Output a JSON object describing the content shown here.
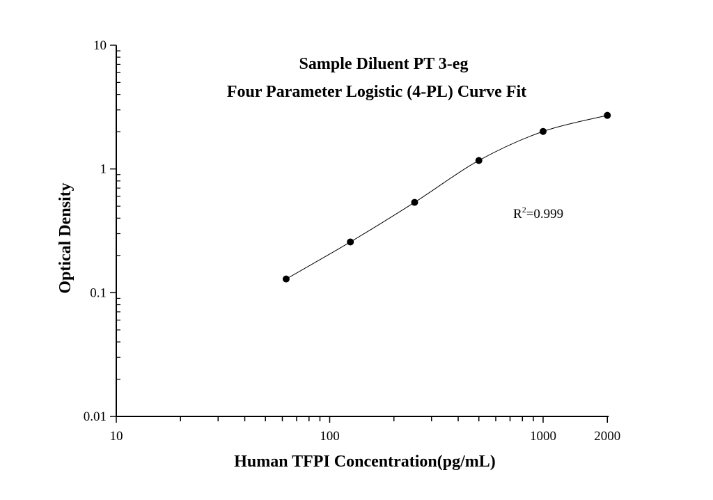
{
  "chart_data": {
    "type": "scatter",
    "title": "Sample Diluent PT 3-eg",
    "subtitle": "Four Parameter Logistic (4-PL) Curve Fit",
    "xlabel": "Human TFPI Concentration(pg/mL)",
    "ylabel": "Optical Density",
    "x_scale": "log",
    "y_scale": "log",
    "xlim": [
      10,
      2000
    ],
    "ylim": [
      0.01,
      10
    ],
    "x_ticks": [
      "10",
      "100",
      "1000",
      "2000"
    ],
    "y_ticks": [
      "0.01",
      "0.1",
      "1",
      "10"
    ],
    "grid": false,
    "legend": "none",
    "annotation": {
      "prefix": "R",
      "sup": "2",
      "text": "=0.999"
    },
    "fit_line": true,
    "marker_color": "#000000",
    "line_color": "#000000",
    "series": [
      {
        "x": [
          62.5,
          125,
          250,
          500,
          1000,
          2000
        ],
        "y": [
          0.129,
          0.257,
          0.537,
          1.17,
          2.01,
          2.71
        ]
      }
    ]
  }
}
